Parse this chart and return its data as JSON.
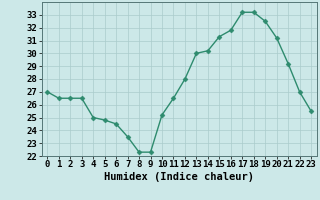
{
  "x": [
    0,
    1,
    2,
    3,
    4,
    5,
    6,
    7,
    8,
    9,
    10,
    11,
    12,
    13,
    14,
    15,
    16,
    17,
    18,
    19,
    20,
    21,
    22,
    23
  ],
  "y": [
    27,
    26.5,
    26.5,
    26.5,
    25,
    24.8,
    24.5,
    23.5,
    22.3,
    22.3,
    25.2,
    26.5,
    28,
    30,
    30.2,
    31.3,
    31.8,
    33.2,
    33.2,
    32.5,
    31.2,
    29.2,
    27,
    25.5
  ],
  "line_color": "#2e8b6e",
  "marker_color": "#2e8b6e",
  "bg_color": "#cce8e8",
  "grid_color": "#aacccc",
  "xlabel": "Humidex (Indice chaleur)",
  "ylim": [
    22,
    34
  ],
  "yticks": [
    22,
    23,
    24,
    25,
    26,
    27,
    28,
    29,
    30,
    31,
    32,
    33
  ],
  "xticks": [
    0,
    1,
    2,
    3,
    4,
    5,
    6,
    7,
    8,
    9,
    10,
    11,
    12,
    13,
    14,
    15,
    16,
    17,
    18,
    19,
    20,
    21,
    22,
    23
  ],
  "xlabel_fontsize": 7.5,
  "tick_fontsize": 6.5,
  "line_width": 1.0,
  "marker_size": 2.5
}
